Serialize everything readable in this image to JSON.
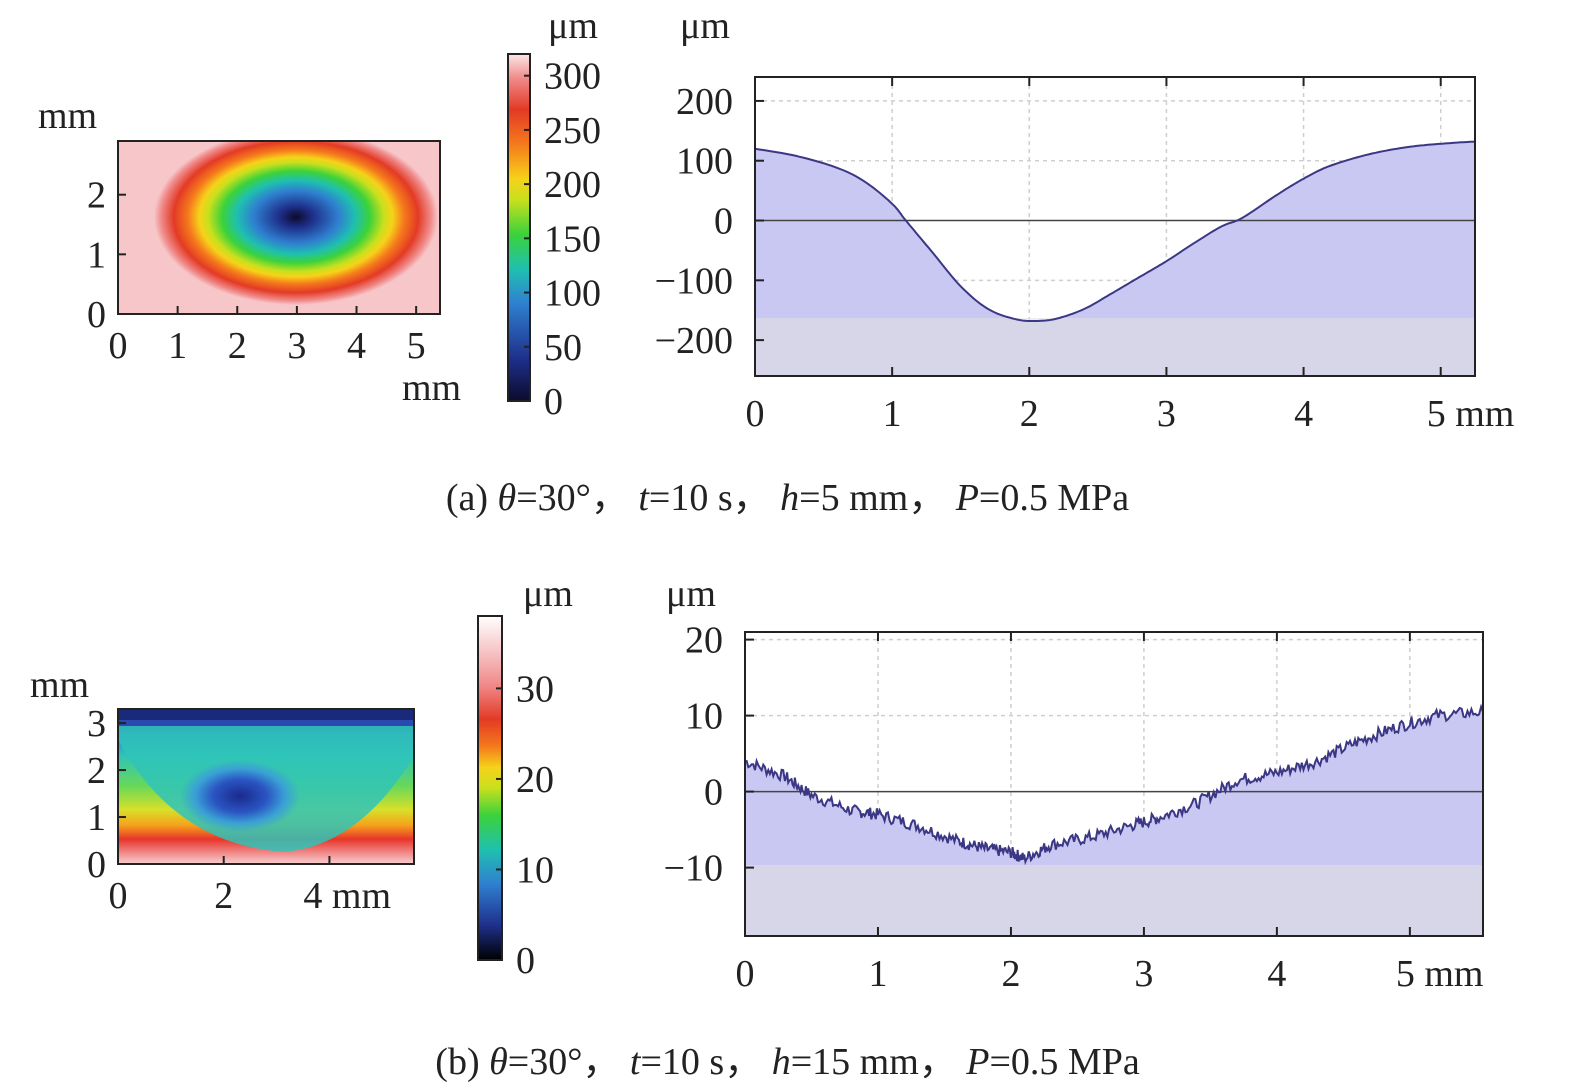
{
  "chart_data": [
    {
      "id": "a-map",
      "type": "heatmap",
      "x_unit": "mm",
      "y_unit": "mm",
      "xlim": [
        0,
        5.4
      ],
      "ylim": [
        0,
        2.9
      ],
      "x_ticks": [
        "0",
        "1",
        "2",
        "3",
        "4",
        "5"
      ],
      "y_ticks": [
        "0",
        "1",
        "2"
      ],
      "colorbar": {
        "unit": "μm",
        "range": [
          0,
          320
        ],
        "ticks": [
          "0",
          "50",
          "100",
          "150",
          "200",
          "250",
          "300"
        ]
      },
      "features": {
        "center": [
          2.95,
          1.6
        ],
        "semi_axes": [
          2.35,
          1.45
        ],
        "min_value": 0,
        "max_value": 320
      }
    },
    {
      "id": "a-profile",
      "type": "area",
      "x_unit": "mm",
      "y_unit": "μm",
      "xlim": [
        0,
        5.25
      ],
      "ylim": [
        -260,
        240
      ],
      "x_ticks": [
        "0",
        "1",
        "2",
        "3",
        "4",
        "5"
      ],
      "y_ticks": [
        "−200",
        "−100",
        "0",
        "100",
        "200"
      ],
      "x": [
        0,
        0.3,
        0.6,
        0.8,
        1.0,
        1.1,
        1.3,
        1.5,
        1.7,
        1.9,
        2.05,
        2.2,
        2.4,
        2.6,
        2.8,
        3.0,
        3.2,
        3.4,
        3.55,
        3.8,
        4.0,
        4.2,
        4.5,
        4.8,
        5.1,
        5.25
      ],
      "y": [
        120,
        108,
        88,
        65,
        28,
        0,
        -55,
        -110,
        -148,
        -165,
        -168,
        -164,
        -148,
        -122,
        -95,
        -68,
        -38,
        -10,
        4,
        42,
        70,
        92,
        112,
        124,
        130,
        132
      ],
      "grid": true
    },
    {
      "id": "b-map",
      "type": "heatmap",
      "x_unit": "mm",
      "y_unit": "mm",
      "xlim": [
        0,
        5.6
      ],
      "ylim": [
        0,
        3.3
      ],
      "x_ticks": [
        "0",
        "2",
        "4 mm"
      ],
      "y_ticks": [
        "0",
        "1",
        "2",
        "3"
      ],
      "colorbar": {
        "unit": "μm",
        "range": [
          0,
          38
        ],
        "ticks": [
          "0",
          "10",
          "20",
          "30"
        ]
      },
      "features": {
        "low_center": [
          2.3,
          1.5
        ],
        "min_value": 6,
        "max_value": 38
      }
    },
    {
      "id": "b-profile",
      "type": "line",
      "x_unit": "mm",
      "y_unit": "μm",
      "xlim": [
        0,
        5.55
      ],
      "ylim": [
        -19,
        21
      ],
      "x_ticks": [
        "0",
        "1",
        "2",
        "3",
        "4",
        "5"
      ],
      "y_ticks": [
        "−10",
        "0",
        "10",
        "20"
      ],
      "x": [
        0,
        0.3,
        0.5,
        0.8,
        1.0,
        1.3,
        1.6,
        1.8,
        2.0,
        2.1,
        2.3,
        2.6,
        2.9,
        3.1,
        3.4,
        3.7,
        4.0,
        4.3,
        4.6,
        4.9,
        5.2,
        5.55
      ],
      "y": [
        4,
        2,
        -0.5,
        -2.5,
        -3,
        -4.5,
        -6.5,
        -7.5,
        -8,
        -8.8,
        -7,
        -6,
        -4.5,
        -3.5,
        -1.5,
        1.5,
        2.5,
        4,
        6.5,
        8.5,
        10,
        10.5
      ],
      "grid": true
    }
  ],
  "panels": {
    "a": {
      "map": {
        "y_unit_label": "mm",
        "x_unit_label": "mm",
        "xticks": [
          "0",
          "1",
          "2",
          "3",
          "4",
          "5"
        ],
        "yticks": [
          "0",
          "1",
          "2"
        ]
      },
      "colorbar": {
        "unit_label": "μm",
        "ticks": [
          "300",
          "250",
          "200",
          "150",
          "100",
          "50",
          "0"
        ]
      },
      "profile": {
        "y_unit_label": "μm",
        "yticks": [
          "200",
          "100",
          "0",
          "−100",
          "−200"
        ],
        "xticks": [
          "0",
          "1",
          "2",
          "3",
          "4"
        ],
        "x_last": "5 mm"
      },
      "caption": {
        "label": "(a) ",
        "theta": "θ",
        "theta_val": "=30°，",
        "t": "t",
        "t_val": "=10 s，",
        "h": "h",
        "h_val": "=5 mm，",
        "p": "P",
        "p_val": "=0.5 MPa"
      }
    },
    "b": {
      "map": {
        "y_unit_label": "mm",
        "xticks": [
          "0",
          "2",
          "4 mm"
        ],
        "yticks": [
          "0",
          "1",
          "2",
          "3"
        ]
      },
      "colorbar": {
        "unit_label": "μm",
        "ticks": [
          "30",
          "20",
          "10",
          "0"
        ]
      },
      "profile": {
        "y_unit_label": "μm",
        "yticks": [
          "20",
          "10",
          "0",
          "−10"
        ],
        "xticks": [
          "0",
          "1",
          "2",
          "3",
          "4"
        ],
        "x_last": "5 mm"
      },
      "caption": {
        "label": "(b) ",
        "theta": "θ",
        "theta_val": "=30°，",
        "t": "t",
        "t_val": "=10 s，",
        "h": "h",
        "h_val": "=15 mm，",
        "p": "P",
        "p_val": "=0.5 MPa"
      }
    }
  },
  "colors": {
    "fill": "#c9c8f2",
    "line": "#3b3784",
    "frame": "#222222",
    "grid": "#cfcfcf",
    "plot_bg": "#ffffff",
    "bottom_band": "#e2e2e2"
  }
}
